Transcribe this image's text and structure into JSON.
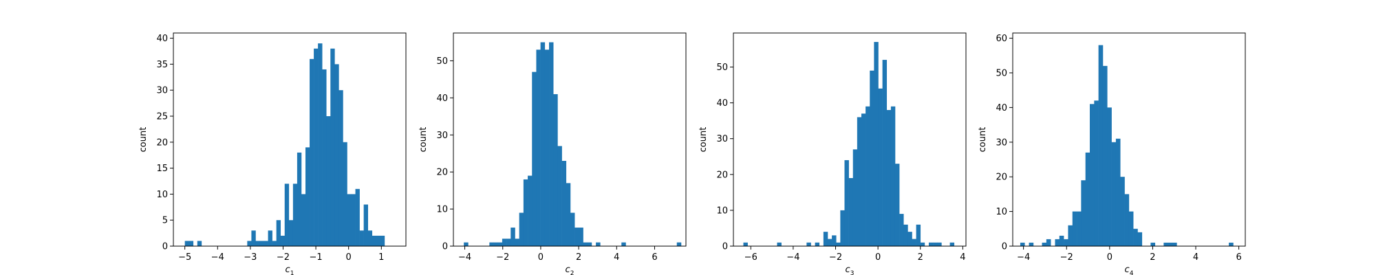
{
  "chart_data": [
    {
      "type": "bar",
      "title": "",
      "xlabel": "c",
      "xlabel_sub": "1",
      "ylabel": "count",
      "color": "#1f77b4",
      "xlim": [
        -5.35,
        1.75
      ],
      "ylim": [
        0,
        41
      ],
      "xticks": [
        -5,
        -4,
        -3,
        -2,
        -1,
        0,
        1
      ],
      "yticks": [
        0,
        5,
        10,
        15,
        20,
        25,
        30,
        35,
        40
      ],
      "grid": false,
      "bins": {
        "start": -5.0,
        "width": 0.127,
        "counts": [
          1,
          1,
          0,
          1,
          0,
          0,
          0,
          0,
          0,
          0,
          0,
          0,
          0,
          0,
          0,
          1,
          3,
          1,
          1,
          1,
          3,
          1,
          5,
          2,
          12,
          5,
          12,
          18,
          10,
          19,
          36,
          38,
          39,
          34,
          25,
          38,
          35,
          30,
          20,
          10,
          10,
          11,
          3,
          8,
          3,
          2,
          2,
          2
        ]
      }
    },
    {
      "type": "bar",
      "title": "",
      "xlabel": "c",
      "xlabel_sub": "2",
      "ylabel": "count",
      "color": "#1f77b4",
      "xlim": [
        -4.6,
        7.65
      ],
      "ylim": [
        0,
        57.5
      ],
      "xticks": [
        -4,
        -2,
        0,
        2,
        4,
        6
      ],
      "yticks": [
        0,
        10,
        20,
        30,
        40,
        50
      ],
      "grid": false,
      "bins": {
        "start": -4.05,
        "width": 0.2244,
        "counts": [
          1,
          0,
          0,
          0,
          0,
          0,
          1,
          1,
          1,
          2,
          2,
          5,
          2,
          9,
          18,
          19,
          47,
          53,
          55,
          53,
          55,
          41,
          27,
          23,
          17,
          9,
          5,
          5,
          1,
          1,
          0,
          1,
          0,
          0,
          0,
          0,
          0,
          1,
          0,
          0,
          0,
          0,
          0,
          0,
          0,
          0,
          0,
          0,
          0,
          0,
          1
        ]
      }
    },
    {
      "type": "bar",
      "title": "",
      "xlabel": "c",
      "xlabel_sub": "3",
      "ylabel": "count",
      "color": "#1f77b4",
      "xlim": [
        -6.82,
        4.15
      ],
      "ylim": [
        0,
        59.5
      ],
      "xticks": [
        -6,
        -4,
        -2,
        0,
        2,
        4
      ],
      "yticks": [
        0,
        10,
        20,
        30,
        40,
        50
      ],
      "grid": false,
      "bins": {
        "start": -6.35,
        "width": 0.1988,
        "counts": [
          1,
          0,
          0,
          0,
          0,
          0,
          0,
          0,
          1,
          0,
          0,
          0,
          0,
          0,
          0,
          1,
          0,
          1,
          0,
          4,
          2,
          3,
          1,
          10,
          24,
          19,
          27,
          36,
          37,
          39,
          49,
          57,
          44,
          52,
          38,
          39,
          23,
          9,
          6,
          4,
          2,
          6,
          1,
          0,
          1,
          1,
          1,
          0,
          0,
          1
        ]
      }
    },
    {
      "type": "bar",
      "title": "",
      "xlabel": "c",
      "xlabel_sub": "4",
      "ylabel": "count",
      "color": "#1f77b4",
      "xlim": [
        -4.5,
        6.3
      ],
      "ylim": [
        0,
        61.5
      ],
      "xticks": [
        -4,
        -2,
        0,
        2,
        4,
        6
      ],
      "yticks": [
        0,
        10,
        20,
        30,
        40,
        50,
        60
      ],
      "grid": false,
      "bins": {
        "start": -4.15,
        "width": 0.2018,
        "counts": [
          1,
          0,
          1,
          0,
          0,
          1,
          2,
          0,
          2,
          3,
          2,
          6,
          10,
          10,
          19,
          27,
          41,
          42,
          58,
          52,
          40,
          30,
          31,
          20,
          15,
          10,
          5,
          4,
          0,
          0,
          1,
          0,
          0,
          1,
          1,
          1,
          0,
          0,
          0,
          0,
          0,
          0,
          0,
          0,
          0,
          0,
          0,
          0,
          1
        ]
      }
    }
  ]
}
